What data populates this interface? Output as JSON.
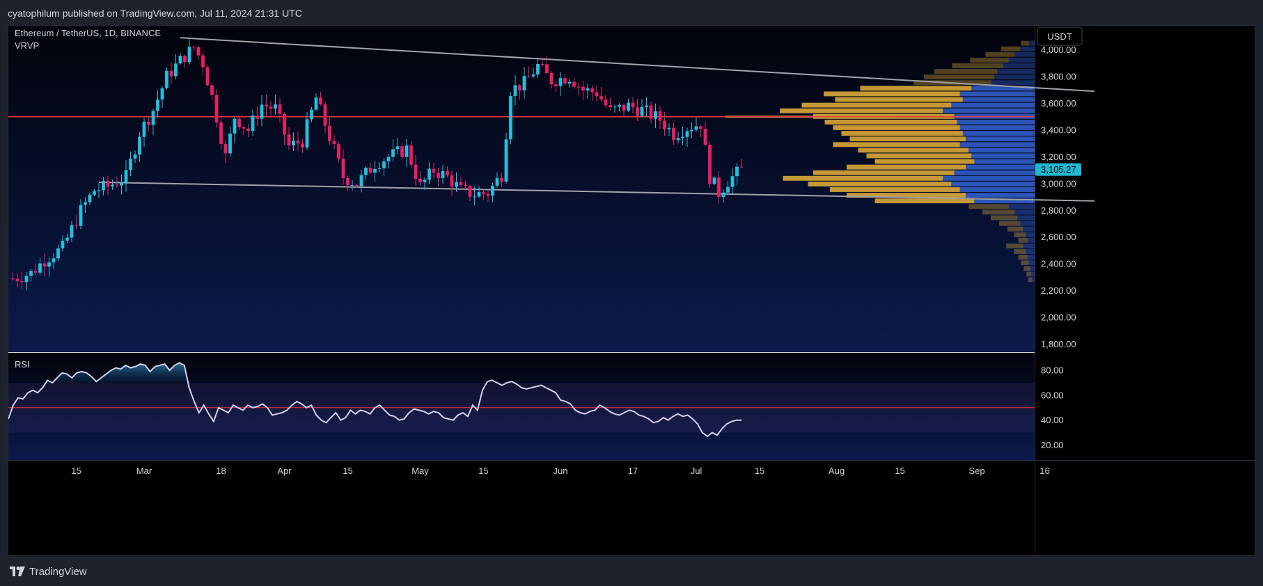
{
  "header": {
    "publisher": "cyatophilum published on TradingView.com, Jul 11, 2024 21:31 UTC"
  },
  "footer": {
    "brand": "TradingView"
  },
  "chart_data": {
    "type": "candlestick",
    "symbol_line": "Ethereum / TetherUS, 1D, BINANCE",
    "indicator_label": "VRVP",
    "rsi_label": "RSI",
    "currency_button": "USDT",
    "last_price_label": "3,105.27",
    "last_price": 3105.27,
    "colors": {
      "up": "#22c0dd",
      "down": "#e91e63",
      "background": "#000000",
      "price_line": "#f23645",
      "trend_line": "#a0a3ab",
      "vp_up": "#3a6ee8",
      "vp_down": "#e8b23a",
      "rsi_line": "#d7d0ee"
    },
    "price_axis": {
      "ticks": [
        4000,
        3800,
        3600,
        3400,
        3200,
        3000,
        2800,
        2600,
        2400,
        2200,
        2000,
        1800
      ],
      "labels": [
        "4,000.00",
        "3,800.00",
        "3,600.00",
        "3,400.00",
        "3,200.00",
        "3,000.00",
        "2,800.00",
        "2,600.00",
        "2,400.00",
        "2,200.00",
        "2,000.00",
        "1,800.00"
      ],
      "ylim": [
        1740,
        4180
      ]
    },
    "rsi_axis": {
      "ticks": [
        80,
        60,
        40,
        20
      ],
      "labels": [
        "80.00",
        "60.00",
        "40.00",
        "20.00"
      ],
      "ylim": [
        8,
        94
      ],
      "band": [
        30,
        70
      ],
      "midline": 50
    },
    "time_axis": [
      {
        "label": "15",
        "date": "2024-02-15"
      },
      {
        "label": "Mar",
        "date": "2024-03-01"
      },
      {
        "label": "18",
        "date": "2024-03-18"
      },
      {
        "label": "Apr",
        "date": "2024-04-01"
      },
      {
        "label": "15",
        "date": "2024-04-15"
      },
      {
        "label": "May",
        "date": "2024-05-01"
      },
      {
        "label": "15",
        "date": "2024-05-15"
      },
      {
        "label": "Jun",
        "date": "2024-06-01"
      },
      {
        "label": "17",
        "date": "2024-06-17"
      },
      {
        "label": "Jul",
        "date": "2024-07-01"
      },
      {
        "label": "15",
        "date": "2024-07-15"
      },
      {
        "label": "Aug",
        "date": "2024-08-01"
      },
      {
        "label": "15",
        "date": "2024-08-15"
      },
      {
        "label": "Sep",
        "date": "2024-09-01"
      },
      {
        "label": "16",
        "date": "2024-09-16"
      }
    ],
    "horizontal_level": 3500,
    "trendlines": [
      {
        "x1": "2024-03-09",
        "y1": 4090,
        "x2": "2024-09-27",
        "y2": 3690
      },
      {
        "x1": "2024-02-20",
        "y1": 3010,
        "x2": "2024-09-27",
        "y2": 2870
      }
    ],
    "candles_start": "2024-02-01",
    "candles_end": "2024-07-11",
    "close_path": [
      [
        "2024-02-01",
        2290
      ],
      [
        "2024-02-05",
        2330
      ],
      [
        "2024-02-08",
        2430
      ],
      [
        "2024-02-12",
        2520
      ],
      [
        "2024-02-16",
        2800
      ],
      [
        "2024-02-19",
        2950
      ],
      [
        "2024-02-22",
        2980
      ],
      [
        "2024-02-26",
        3050
      ],
      [
        "2024-02-29",
        3380
      ],
      [
        "2024-03-03",
        3550
      ],
      [
        "2024-03-06",
        3800
      ],
      [
        "2024-03-09",
        3920
      ],
      [
        "2024-03-12",
        4020
      ],
      [
        "2024-03-14",
        3900
      ],
      [
        "2024-03-16",
        3650
      ],
      [
        "2024-03-19",
        3200
      ],
      [
        "2024-03-21",
        3500
      ],
      [
        "2024-03-24",
        3400
      ],
      [
        "2024-03-27",
        3590
      ],
      [
        "2024-03-30",
        3560
      ],
      [
        "2024-04-02",
        3280
      ],
      [
        "2024-04-05",
        3320
      ],
      [
        "2024-04-08",
        3640
      ],
      [
        "2024-04-12",
        3250
      ],
      [
        "2024-04-14",
        3050
      ],
      [
        "2024-04-17",
        3000
      ],
      [
        "2024-04-21",
        3150
      ],
      [
        "2024-04-24",
        3200
      ],
      [
        "2024-04-28",
        3260
      ],
      [
        "2024-05-01",
        2980
      ],
      [
        "2024-05-04",
        3100
      ],
      [
        "2024-05-07",
        3050
      ],
      [
        "2024-05-10",
        2950
      ],
      [
        "2024-05-13",
        2920
      ],
      [
        "2024-05-16",
        2930
      ],
      [
        "2024-05-19",
        3070
      ],
      [
        "2024-05-21",
        3700
      ],
      [
        "2024-05-24",
        3750
      ],
      [
        "2024-05-27",
        3880
      ],
      [
        "2024-05-30",
        3770
      ],
      [
        "2024-06-03",
        3800
      ],
      [
        "2024-06-06",
        3700
      ],
      [
        "2024-06-09",
        3680
      ],
      [
        "2024-06-12",
        3540
      ],
      [
        "2024-06-16",
        3580
      ],
      [
        "2024-06-19",
        3550
      ],
      [
        "2024-06-23",
        3480
      ],
      [
        "2024-06-26",
        3370
      ],
      [
        "2024-06-29",
        3420
      ],
      [
        "2024-07-02",
        3450
      ],
      [
        "2024-07-04",
        3050
      ],
      [
        "2024-07-06",
        2930
      ],
      [
        "2024-07-08",
        3020
      ],
      [
        "2024-07-11",
        3105
      ]
    ],
    "volume_profile": {
      "price_range": [
        2260,
        4070
      ],
      "rows_top_to_bottom": [
        [
          0.1,
          0.05
        ],
        [
          0.25,
          0.12
        ],
        [
          0.35,
          0.2
        ],
        [
          0.45,
          0.28
        ],
        [
          0.55,
          0.4
        ],
        [
          0.65,
          0.52
        ],
        [
          0.7,
          0.6
        ],
        [
          0.75,
          0.68
        ],
        [
          1.1,
          0.95
        ],
        [
          1.3,
          1.2
        ],
        [
          1.25,
          1.1
        ],
        [
          1.45,
          1.3
        ],
        [
          1.6,
          1.4
        ],
        [
          1.4,
          1.2
        ],
        [
          1.35,
          1.1
        ],
        [
          1.3,
          1.05
        ],
        [
          1.25,
          1.0
        ],
        [
          1.2,
          0.95
        ],
        [
          1.3,
          1.05
        ],
        [
          1.15,
          0.9
        ],
        [
          1.1,
          0.85
        ],
        [
          1.05,
          0.8
        ],
        [
          1.2,
          1.0
        ],
        [
          1.4,
          1.2
        ],
        [
          1.6,
          1.35
        ],
        [
          1.45,
          1.2
        ],
        [
          1.3,
          1.1
        ],
        [
          1.2,
          1.0
        ],
        [
          1.05,
          0.8
        ],
        [
          0.45,
          0.3
        ],
        [
          0.35,
          0.25
        ],
        [
          0.3,
          0.2
        ],
        [
          0.25,
          0.15
        ],
        [
          0.2,
          0.1
        ],
        [
          0.15,
          0.08
        ],
        [
          0.12,
          0.06
        ],
        [
          0.2,
          0.12
        ],
        [
          0.15,
          0.08
        ],
        [
          0.12,
          0.06
        ],
        [
          0.1,
          0.05
        ],
        [
          0.08,
          0.04
        ],
        [
          0.06,
          0.03
        ],
        [
          0.05,
          0.02
        ]
      ]
    },
    "rsi": [
      41,
      52,
      58,
      57,
      62,
      64,
      62,
      66,
      72,
      70,
      74,
      78,
      77,
      74,
      78,
      79,
      78,
      75,
      71,
      74,
      77,
      80,
      82,
      81,
      84,
      82,
      83,
      85,
      84,
      79,
      83,
      84,
      85,
      80,
      84,
      86,
      84,
      66,
      55,
      46,
      52,
      45,
      39,
      50,
      48,
      46,
      52,
      50,
      48,
      52,
      50,
      51,
      53,
      50,
      44,
      45,
      46,
      48,
      52,
      55,
      53,
      50,
      52,
      44,
      40,
      38,
      42,
      46,
      40,
      42,
      48,
      45,
      48,
      47,
      45,
      50,
      52,
      48,
      44,
      43,
      40,
      41,
      46,
      49,
      48,
      47,
      45,
      47,
      46,
      42,
      41,
      40,
      44,
      46,
      43,
      52,
      48,
      64,
      71,
      72,
      70,
      68,
      70,
      71,
      69,
      66,
      65,
      66,
      67,
      68,
      66,
      64,
      62,
      56,
      55,
      53,
      48,
      46,
      45,
      47,
      48,
      52,
      50,
      47,
      45,
      44,
      46,
      48,
      47,
      44,
      43,
      41,
      38,
      39,
      42,
      40,
      43,
      45,
      43,
      44,
      41,
      37,
      30,
      27,
      30,
      28,
      33,
      37,
      39,
      40,
      40
    ]
  }
}
